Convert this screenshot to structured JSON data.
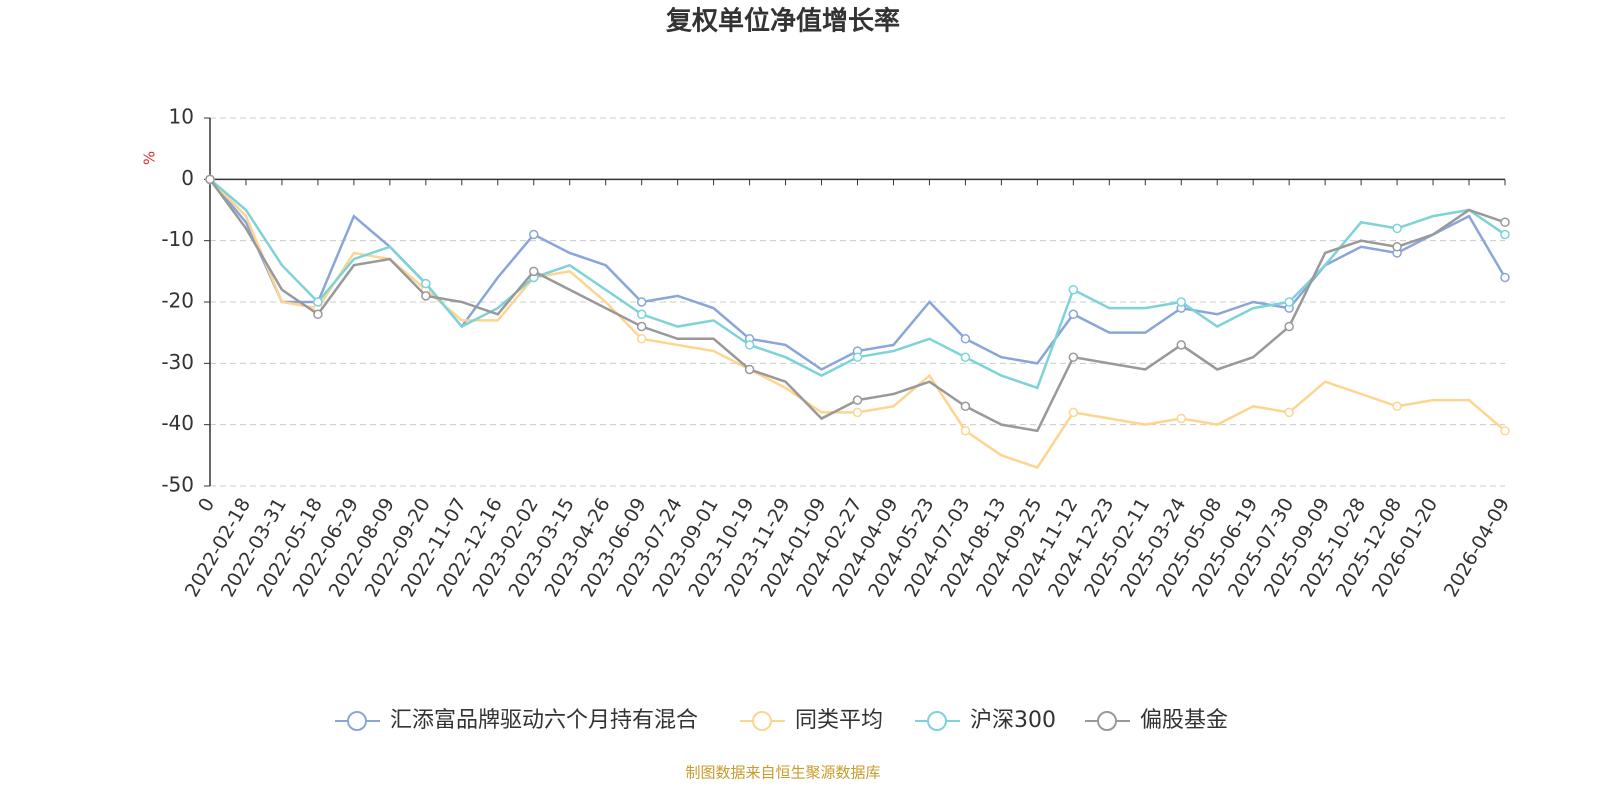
{
  "chart_data": {
    "type": "line",
    "title": "复权单位净值增长率",
    "y_label": "%",
    "source": "制图数据来自恒生聚源数据库",
    "categories": [
      "0",
      "2022-02-18",
      "2022-03-31",
      "2022-05-18",
      "2022-06-29",
      "2022-08-09",
      "2022-09-20",
      "2022-11-07",
      "2022-12-16",
      "2023-02-02",
      "2023-03-15",
      "2023-04-26",
      "2023-06-09",
      "2023-07-24",
      "2023-09-01",
      "2023-10-19",
      "2023-11-29",
      "2024-01-09",
      "2024-02-27",
      "2024-04-09",
      "2024-05-23",
      "2024-07-03",
      "2024-08-13",
      "2024-09-25",
      "2024-11-12",
      "2024-12-23",
      "2025-02-11",
      "2025-03-24",
      "2025-05-08",
      "2025-06-19",
      "2025-07-30",
      "2025-09-09",
      "2025-10-28",
      "2025-12-08",
      "2026-01-20",
      null,
      "2026-04-09"
    ],
    "series": [
      {
        "name": "汇添富品牌驱动六个月持有混合",
        "color": "#8aa5d8",
        "values": [
          0,
          -7,
          -20,
          -20,
          -6,
          -11,
          -17,
          -24,
          -16,
          -9,
          -12,
          -14,
          -20,
          -19,
          -21,
          -26,
          -27,
          -31,
          -28,
          -27,
          -20,
          -26,
          -29,
          -30,
          -22,
          -25,
          -25,
          -21,
          -22,
          -20,
          -21,
          -14,
          -11,
          -12,
          -9,
          -6,
          -16
        ]
      },
      {
        "name": "同类平均",
        "color": "#fdd590",
        "values": [
          0,
          -6,
          -20,
          -21,
          -12,
          -13,
          -18,
          -23,
          -23,
          -16,
          -15,
          -20,
          -26,
          -27,
          -28,
          -31,
          -34,
          -38,
          -38,
          -37,
          -32,
          -41,
          -45,
          -47,
          -38,
          -39,
          -40,
          -39,
          -40,
          -37,
          -38,
          -33,
          -35,
          -37,
          -36,
          -36,
          -41
        ]
      },
      {
        "name": "沪深300",
        "color": "#7dd3d8",
        "values": [
          0,
          -5,
          -14,
          -20,
          -13,
          -11,
          -17,
          -24,
          -21,
          -16,
          -14,
          -18,
          -22,
          -24,
          -23,
          -27,
          -29,
          -32,
          -29,
          -28,
          -26,
          -29,
          -32,
          -34,
          -18,
          -21,
          -21,
          -20,
          -24,
          -21,
          -20,
          -14,
          -7,
          -8,
          -6,
          -5,
          -9
        ]
      },
      {
        "name": "偏股基金",
        "color": "#999999",
        "values": [
          0,
          -8,
          -18,
          -22,
          -14,
          -13,
          -19,
          -20,
          -22,
          -15,
          -18,
          -21,
          -24,
          -26,
          -26,
          -31,
          -33,
          -39,
          -36,
          -35,
          -33,
          -37,
          -40,
          -41,
          -29,
          -30,
          -31,
          -27,
          -31,
          -29,
          -24,
          -12,
          -10,
          -11,
          -9,
          -5,
          -7
        ]
      }
    ],
    "ylim": [
      -50,
      10
    ],
    "yticks": [
      -50,
      -40,
      -30,
      -20,
      -10,
      0,
      10
    ],
    "grid": true
  }
}
